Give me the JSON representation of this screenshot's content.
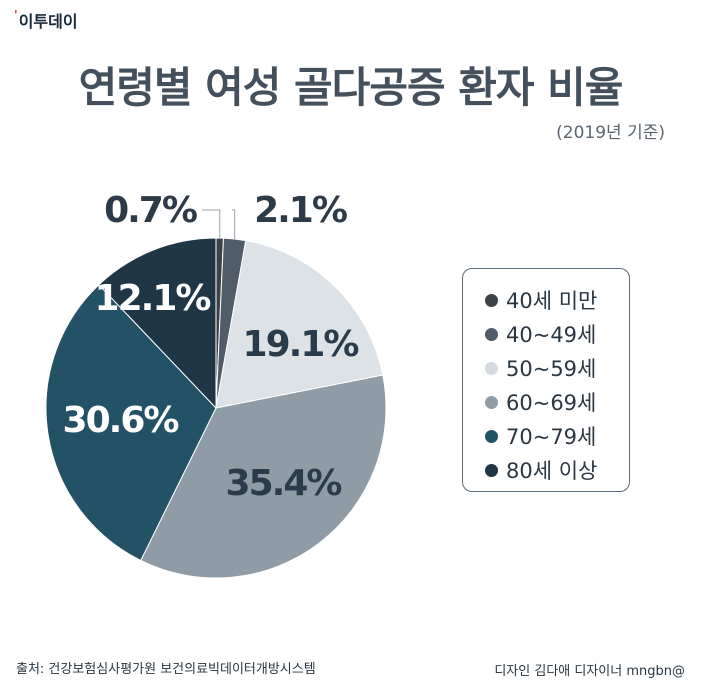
{
  "header": {
    "logo": "이투데이",
    "title": "연령별 여성 골다공증 환자 비율",
    "subtitle": "(2019년 기준)"
  },
  "footer": {
    "source": "출처: 건강보험심사평가원 보건의료빅데이터개방시스템",
    "credit": "디자인 김다애 디자이너 mngbn@"
  },
  "chart_data": {
    "type": "pie",
    "title": "연령별 여성 골다공증 환자 비율",
    "subtitle": "(2019년 기준)",
    "legend_position": "right",
    "slices": [
      {
        "label": "40세 미만",
        "value": 0.7,
        "display": "0.7%",
        "color": "#3d4248"
      },
      {
        "label": "40~49세",
        "value": 2.1,
        "display": "2.1%",
        "color": "#505d69"
      },
      {
        "label": "50~59세",
        "value": 19.1,
        "display": "19.1%",
        "color": "#dde2e7"
      },
      {
        "label": "60~69세",
        "value": 35.4,
        "display": "35.4%",
        "color": "#8f9ca5"
      },
      {
        "label": "70~79세",
        "value": 30.6,
        "display": "30.6%",
        "color": "#235166"
      },
      {
        "label": "80세 이상",
        "value": 12.1,
        "display": "12.1%",
        "color": "#1f3647"
      }
    ]
  }
}
